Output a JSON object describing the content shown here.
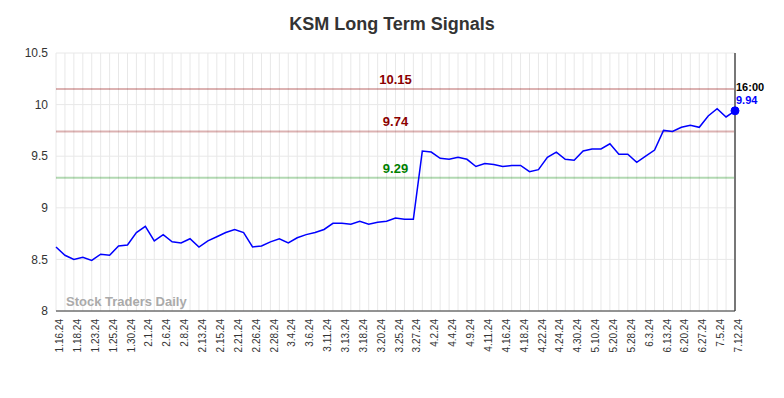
{
  "chart_data": {
    "type": "line",
    "title": "KSM Long Term Signals",
    "watermark": "Stock Traders Daily",
    "time_label": "16:00",
    "color": "#0000ff",
    "categories": [
      "1.16.24",
      null,
      "1.18.24",
      null,
      "1.23.24",
      null,
      "1.25.24",
      null,
      "1.30.24",
      null,
      "2.1.24",
      null,
      "2.6.24",
      null,
      "2.8.24",
      null,
      "2.13.24",
      null,
      "2.15.24",
      null,
      "2.21.24",
      null,
      "2.26.24",
      null,
      "2.28.24",
      null,
      "3.4.24",
      null,
      "3.6.24",
      null,
      "3.11.24",
      null,
      "3.13.24",
      null,
      "3.18.24",
      null,
      "3.20.24",
      null,
      "3.25.24",
      null,
      "3.27.24",
      null,
      "4.2.24",
      null,
      "4.4.24",
      null,
      "4.9.24",
      null,
      "4.11.24",
      null,
      "4.16.24",
      null,
      "4.18.24",
      null,
      "4.22.24",
      null,
      "4.24.24",
      null,
      "4.30.24",
      null,
      "5.10.24",
      null,
      "5.20.24",
      null,
      "5.28.24",
      null,
      "6.3.24",
      null,
      "6.13.24",
      null,
      "6.20.24",
      null,
      "6.27.24",
      null,
      "7.5.24",
      null,
      "7.12.24"
    ],
    "values": [
      8.62,
      8.54,
      8.5,
      8.52,
      8.49,
      8.55,
      8.54,
      8.63,
      8.64,
      8.76,
      8.82,
      8.68,
      8.74,
      8.67,
      8.66,
      8.7,
      8.62,
      8.68,
      8.72,
      8.76,
      8.79,
      8.76,
      8.62,
      8.63,
      8.67,
      8.7,
      8.66,
      8.71,
      8.74,
      8.76,
      8.79,
      8.85,
      8.85,
      8.84,
      8.87,
      8.84,
      8.86,
      8.87,
      8.9,
      8.89,
      8.89,
      9.55,
      9.54,
      9.48,
      9.47,
      9.49,
      9.47,
      9.4,
      9.43,
      9.42,
      9.4,
      9.41,
      9.41,
      9.35,
      9.37,
      9.49,
      9.54,
      9.47,
      9.46,
      9.55,
      9.57,
      9.57,
      9.62,
      9.52,
      9.52,
      9.44,
      9.5,
      9.56,
      9.75,
      9.74,
      9.78,
      9.8,
      9.78,
      9.89,
      9.96,
      9.88,
      9.94
    ],
    "levels": [
      {
        "value": 10.15,
        "color": "#8b0000"
      },
      {
        "value": 9.74,
        "color": "#8b0000"
      },
      {
        "value": 9.29,
        "color": "#008000"
      }
    ],
    "ylim": [
      8,
      10.5
    ],
    "yticks": [
      8,
      8.5,
      9,
      9.5,
      10,
      10.5
    ],
    "grid": true
  }
}
